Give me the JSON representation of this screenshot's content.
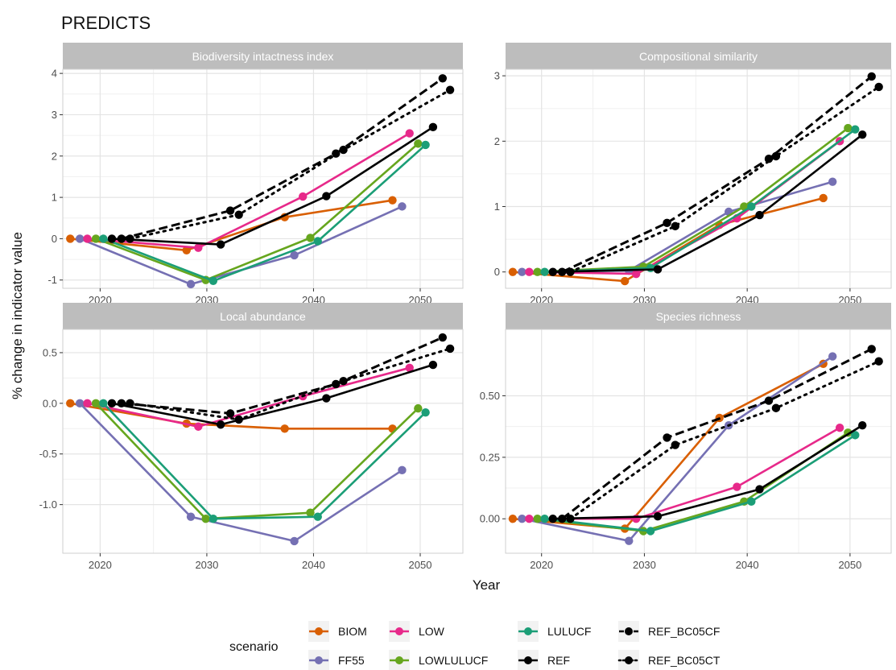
{
  "title": "PREDICTS",
  "xlabel": "Year",
  "ylabel": "% change in indicator value",
  "legend": {
    "title": "scenario",
    "entries": [
      {
        "name": "BIOM",
        "color": "#D95F02",
        "dash": "solid"
      },
      {
        "name": "FF55",
        "color": "#7570B3",
        "dash": "solid"
      },
      {
        "name": "LOW",
        "color": "#E7298A",
        "dash": "solid"
      },
      {
        "name": "LOWLULUCF",
        "color": "#66A61E",
        "dash": "solid"
      },
      {
        "name": "LULUCF",
        "color": "#1B9E77",
        "dash": "solid"
      },
      {
        "name": "REF",
        "color": "#000000",
        "dash": "solid"
      },
      {
        "name": "REF_BC05CF",
        "color": "#000000",
        "dash": "dashed"
      },
      {
        "name": "REF_BC05CT",
        "color": "#000000",
        "dash": "dotted"
      }
    ]
  },
  "chart_data": [
    {
      "type": "line",
      "title": "Biodiversity intactness index",
      "xlim": [
        2016.5,
        2054
      ],
      "ylim": [
        -1.2,
        4.1
      ],
      "xticks": [
        2020,
        2030,
        2040,
        2050
      ],
      "yticks": [
        -1,
        0,
        1,
        2,
        3,
        4
      ],
      "ytick_labels": [
        "-1",
        "0",
        "1",
        "2",
        "3",
        "4"
      ],
      "series": [
        {
          "name": "BIOM",
          "x": [
            2017.2,
            2028.1,
            2037.3,
            2047.4
          ],
          "y": [
            0,
            -0.28,
            0.52,
            0.93
          ]
        },
        {
          "name": "FF55",
          "x": [
            2018.1,
            2028.5,
            2038.2,
            2048.3
          ],
          "y": [
            0,
            -1.1,
            -0.4,
            0.78
          ]
        },
        {
          "name": "LOW",
          "x": [
            2018.8,
            2029.2,
            2039.0,
            2049.0
          ],
          "y": [
            0,
            -0.22,
            1.02,
            2.55
          ]
        },
        {
          "name": "LOWLULUCF",
          "x": [
            2019.6,
            2029.9,
            2039.7,
            2049.8
          ],
          "y": [
            0,
            -1.0,
            0.02,
            2.3
          ]
        },
        {
          "name": "LULUCF",
          "x": [
            2020.3,
            2030.6,
            2040.4,
            2050.5
          ],
          "y": [
            0,
            -1.02,
            -0.06,
            2.27
          ]
        },
        {
          "name": "REF",
          "x": [
            2021.1,
            2031.3,
            2041.2,
            2051.2
          ],
          "y": [
            0,
            -0.14,
            1.03,
            2.7
          ]
        },
        {
          "name": "REF_BC05CF",
          "x": [
            2022.0,
            2032.2,
            2042.1,
            2052.1
          ],
          "y": [
            0,
            0.68,
            2.06,
            3.88
          ]
        },
        {
          "name": "REF_BC05CT",
          "x": [
            2022.8,
            2033.0,
            2042.8,
            2052.8
          ],
          "y": [
            0,
            0.58,
            2.15,
            3.6
          ]
        }
      ]
    },
    {
      "type": "line",
      "title": "Compositional similarity",
      "xlim": [
        2016.5,
        2054
      ],
      "ylim": [
        -0.25,
        3.1
      ],
      "xticks": [
        2020,
        2030,
        2040,
        2050
      ],
      "yticks": [
        0,
        1,
        2,
        3
      ],
      "ytick_labels": [
        "0",
        "1",
        "2",
        "3"
      ],
      "series": [
        {
          "name": "BIOM",
          "x": [
            2017.2,
            2028.1,
            2037.3,
            2047.4
          ],
          "y": [
            0,
            -0.14,
            0.72,
            1.13
          ]
        },
        {
          "name": "FF55",
          "x": [
            2018.1,
            2028.5,
            2038.2,
            2048.3
          ],
          "y": [
            0,
            0.02,
            0.92,
            1.38
          ]
        },
        {
          "name": "LOW",
          "x": [
            2018.8,
            2029.2,
            2039.0,
            2049.0
          ],
          "y": [
            0,
            -0.03,
            0.82,
            2.0
          ]
        },
        {
          "name": "LOWLULUCF",
          "x": [
            2019.6,
            2029.9,
            2039.7,
            2049.8
          ],
          "y": [
            0,
            0.08,
            1.0,
            2.2
          ]
        },
        {
          "name": "LULUCF",
          "x": [
            2020.3,
            2030.6,
            2040.4,
            2050.5
          ],
          "y": [
            0,
            0.06,
            1.0,
            2.18
          ]
        },
        {
          "name": "REF",
          "x": [
            2021.1,
            2031.3,
            2041.2,
            2051.2
          ],
          "y": [
            0,
            0.04,
            0.87,
            2.1
          ]
        },
        {
          "name": "REF_BC05CF",
          "x": [
            2022.0,
            2032.2,
            2042.1,
            2052.1
          ],
          "y": [
            0,
            0.75,
            1.73,
            2.99
          ]
        },
        {
          "name": "REF_BC05CT",
          "x": [
            2022.8,
            2033.0,
            2042.8,
            2052.8
          ],
          "y": [
            0,
            0.7,
            1.77,
            2.83
          ]
        }
      ]
    },
    {
      "type": "line",
      "title": "Local abundance",
      "xlim": [
        2016.5,
        2054
      ],
      "ylim": [
        -1.48,
        0.73
      ],
      "xticks": [
        2020,
        2030,
        2040,
        2050
      ],
      "yticks": [
        -1.0,
        -0.5,
        0.0,
        0.5
      ],
      "ytick_labels": [
        "-1.0",
        "-0.5",
        "0.0",
        "0.5"
      ],
      "series": [
        {
          "name": "BIOM",
          "x": [
            2017.2,
            2028.1,
            2037.3,
            2047.4
          ],
          "y": [
            0,
            -0.2,
            -0.25,
            -0.25
          ]
        },
        {
          "name": "FF55",
          "x": [
            2018.1,
            2028.5,
            2038.2,
            2048.3
          ],
          "y": [
            0,
            -1.12,
            -1.36,
            -0.66
          ]
        },
        {
          "name": "LOW",
          "x": [
            2018.8,
            2029.2,
            2039.0,
            2049.0
          ],
          "y": [
            0,
            -0.23,
            0.07,
            0.35
          ]
        },
        {
          "name": "LOWLULUCF",
          "x": [
            2019.6,
            2029.9,
            2039.7,
            2049.8
          ],
          "y": [
            0,
            -1.14,
            -1.08,
            -0.05
          ]
        },
        {
          "name": "LULUCF",
          "x": [
            2020.3,
            2030.6,
            2040.4,
            2050.5
          ],
          "y": [
            0,
            -1.14,
            -1.12,
            -0.09
          ]
        },
        {
          "name": "REF",
          "x": [
            2021.1,
            2031.3,
            2041.2,
            2051.2
          ],
          "y": [
            0,
            -0.21,
            0.05,
            0.38
          ]
        },
        {
          "name": "REF_BC05CF",
          "x": [
            2022.0,
            2032.2,
            2042.1,
            2052.1
          ],
          "y": [
            0,
            -0.1,
            0.19,
            0.65
          ]
        },
        {
          "name": "REF_BC05CT",
          "x": [
            2022.8,
            2033.0,
            2042.8,
            2052.8
          ],
          "y": [
            0,
            -0.16,
            0.22,
            0.54
          ]
        }
      ]
    },
    {
      "type": "line",
      "title": "Species richness",
      "xlim": [
        2016.5,
        2054
      ],
      "ylim": [
        -0.14,
        0.77
      ],
      "xticks": [
        2020,
        2030,
        2040,
        2050
      ],
      "yticks": [
        0.0,
        0.25,
        0.5
      ],
      "ytick_labels": [
        "0.00",
        "0.25",
        "0.50"
      ],
      "series": [
        {
          "name": "BIOM",
          "x": [
            2017.2,
            2028.1,
            2037.3,
            2047.4
          ],
          "y": [
            0,
            -0.04,
            0.41,
            0.63
          ]
        },
        {
          "name": "FF55",
          "x": [
            2018.1,
            2028.5,
            2038.2,
            2048.3
          ],
          "y": [
            0,
            -0.09,
            0.38,
            0.66
          ]
        },
        {
          "name": "LOW",
          "x": [
            2018.8,
            2029.2,
            2039.0,
            2049.0
          ],
          "y": [
            0,
            0.0,
            0.13,
            0.37
          ]
        },
        {
          "name": "LOWLULUCF",
          "x": [
            2019.6,
            2029.9,
            2039.7,
            2049.8
          ],
          "y": [
            0,
            -0.05,
            0.07,
            0.35
          ]
        },
        {
          "name": "LULUCF",
          "x": [
            2020.3,
            2030.6,
            2040.4,
            2050.5
          ],
          "y": [
            0,
            -0.05,
            0.07,
            0.34
          ]
        },
        {
          "name": "REF",
          "x": [
            2021.1,
            2031.3,
            2041.2,
            2051.2
          ],
          "y": [
            0,
            0.01,
            0.12,
            0.38
          ]
        },
        {
          "name": "REF_BC05CF",
          "x": [
            2022.0,
            2032.2,
            2042.1,
            2052.1
          ],
          "y": [
            0,
            0.33,
            0.48,
            0.69
          ]
        },
        {
          "name": "REF_BC05CT",
          "x": [
            2022.8,
            2033.0,
            2042.8,
            2052.8
          ],
          "y": [
            0,
            0.3,
            0.45,
            0.64
          ]
        }
      ]
    }
  ]
}
